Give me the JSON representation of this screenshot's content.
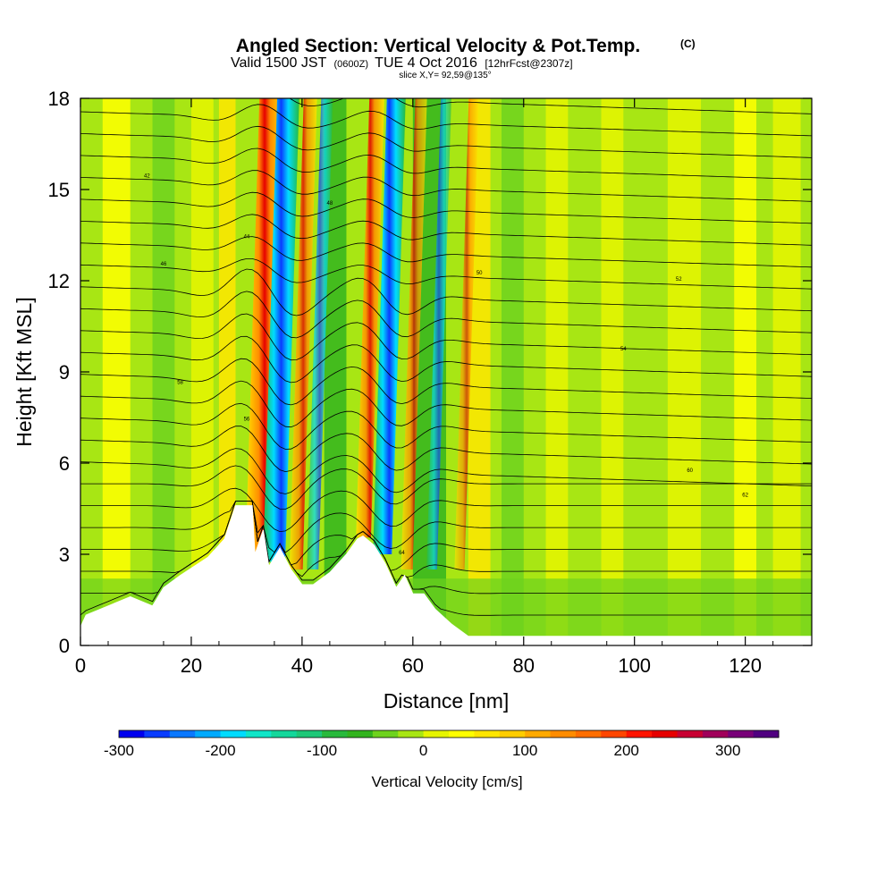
{
  "chart_data": {
    "type": "heatmap",
    "title": "Angled Section: Vertical Velocity & Pot.Temp.",
    "title_suffix": "(C)",
    "subtitle_valid": "Valid 1500 JST",
    "subtitle_zulu": "(0600Z)",
    "subtitle_date": "TUE 4 Oct 2016",
    "subtitle_fcst": "[12hrFcst@2307z]",
    "slice_label": "slice X,Y= 92,59@135°",
    "xlabel": "Distance [nm]",
    "ylabel": "Height [Kft MSL]",
    "xlim": [
      0,
      132
    ],
    "ylim": [
      0,
      18
    ],
    "x_ticks": [
      "0",
      "20",
      "40",
      "60",
      "80",
      "100",
      "120"
    ],
    "y_ticks": [
      "0",
      "3",
      "6",
      "9",
      "12",
      "15",
      "18"
    ],
    "colorbar": {
      "label": "Vertical Velocity [cm/s]",
      "range": [
        -300,
        350
      ],
      "ticks": [
        "-300",
        "-200",
        "-100",
        "0",
        "100",
        "200",
        "300"
      ],
      "colors": [
        "#0000ee",
        "#0a3cff",
        "#0a78ff",
        "#00aaff",
        "#00dcff",
        "#10e6c8",
        "#14d79b",
        "#1ec878",
        "#28b93c",
        "#32b41e",
        "#6ed21e",
        "#a8e614",
        "#e6f500",
        "#ffff00",
        "#ffe600",
        "#ffcd00",
        "#ffaa00",
        "#ff8c00",
        "#ff6e00",
        "#ff4600",
        "#ff1400",
        "#e60000",
        "#c80032",
        "#a0005a",
        "#780078",
        "#500080"
      ]
    },
    "contour_label_samples": [
      "42",
      "44",
      "46",
      "48",
      "50",
      "52",
      "54",
      "56",
      "58",
      "60",
      "62",
      "64",
      "66",
      "68",
      "70"
    ],
    "velocity_features": [
      {
        "x_nm": 31.5,
        "w_cms": 320
      },
      {
        "x_nm": 34.5,
        "w_cms": -280
      },
      {
        "x_nm": 38.5,
        "w_cms": 120
      },
      {
        "x_nm": 41.5,
        "w_cms": -90
      },
      {
        "x_nm": 50.5,
        "w_cms": 150
      },
      {
        "x_nm": 54.0,
        "w_cms": -220
      },
      {
        "x_nm": 58.5,
        "w_cms": 90
      },
      {
        "x_nm": 63.0,
        "w_cms": -70
      },
      {
        "x_nm": 68.0,
        "w_cms": 60
      }
    ],
    "terrain_profile_kft": [
      [
        0,
        0.6
      ],
      [
        1,
        1.0
      ],
      [
        5,
        1.3
      ],
      [
        9,
        1.6
      ],
      [
        13,
        1.3
      ],
      [
        15,
        1.9
      ],
      [
        18,
        2.3
      ],
      [
        23,
        2.9
      ],
      [
        26,
        3.5
      ],
      [
        28,
        4.6
      ],
      [
        31,
        4.6
      ],
      [
        31.5,
        3.0
      ],
      [
        33,
        3.8
      ],
      [
        34,
        2.6
      ],
      [
        36,
        3.2
      ],
      [
        38,
        2.5
      ],
      [
        40,
        2.0
      ],
      [
        42,
        2.0
      ],
      [
        45,
        2.4
      ],
      [
        48,
        3.0
      ],
      [
        50,
        3.5
      ],
      [
        51,
        3.6
      ],
      [
        53,
        3.3
      ],
      [
        55,
        2.7
      ],
      [
        57,
        1.9
      ],
      [
        58.5,
        2.3
      ],
      [
        60,
        1.7
      ],
      [
        62,
        1.7
      ],
      [
        64,
        1.2
      ],
      [
        67,
        0.7
      ],
      [
        70,
        0.3
      ],
      [
        132,
        0.3
      ]
    ]
  }
}
